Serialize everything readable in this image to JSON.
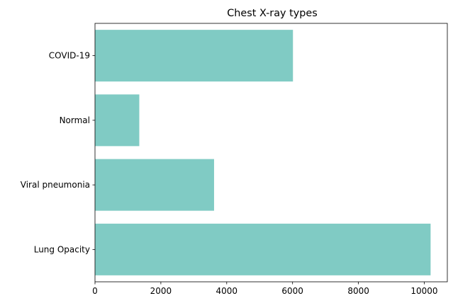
{
  "chart_data": {
    "type": "bar",
    "orientation": "horizontal",
    "title": "Chest X-ray types",
    "xlabel": "",
    "ylabel": "",
    "categories": [
      "COVID-19",
      "Normal",
      "Viral pneumonia",
      "Lung Opacity"
    ],
    "values": [
      6012,
      1345,
      3616,
      10192
    ],
    "xlim": [
      0,
      10700
    ],
    "xticks": [
      0,
      2000,
      4000,
      6000,
      8000,
      10000
    ],
    "grid": false,
    "legend": "none",
    "bar_color": "#80cbc4"
  }
}
